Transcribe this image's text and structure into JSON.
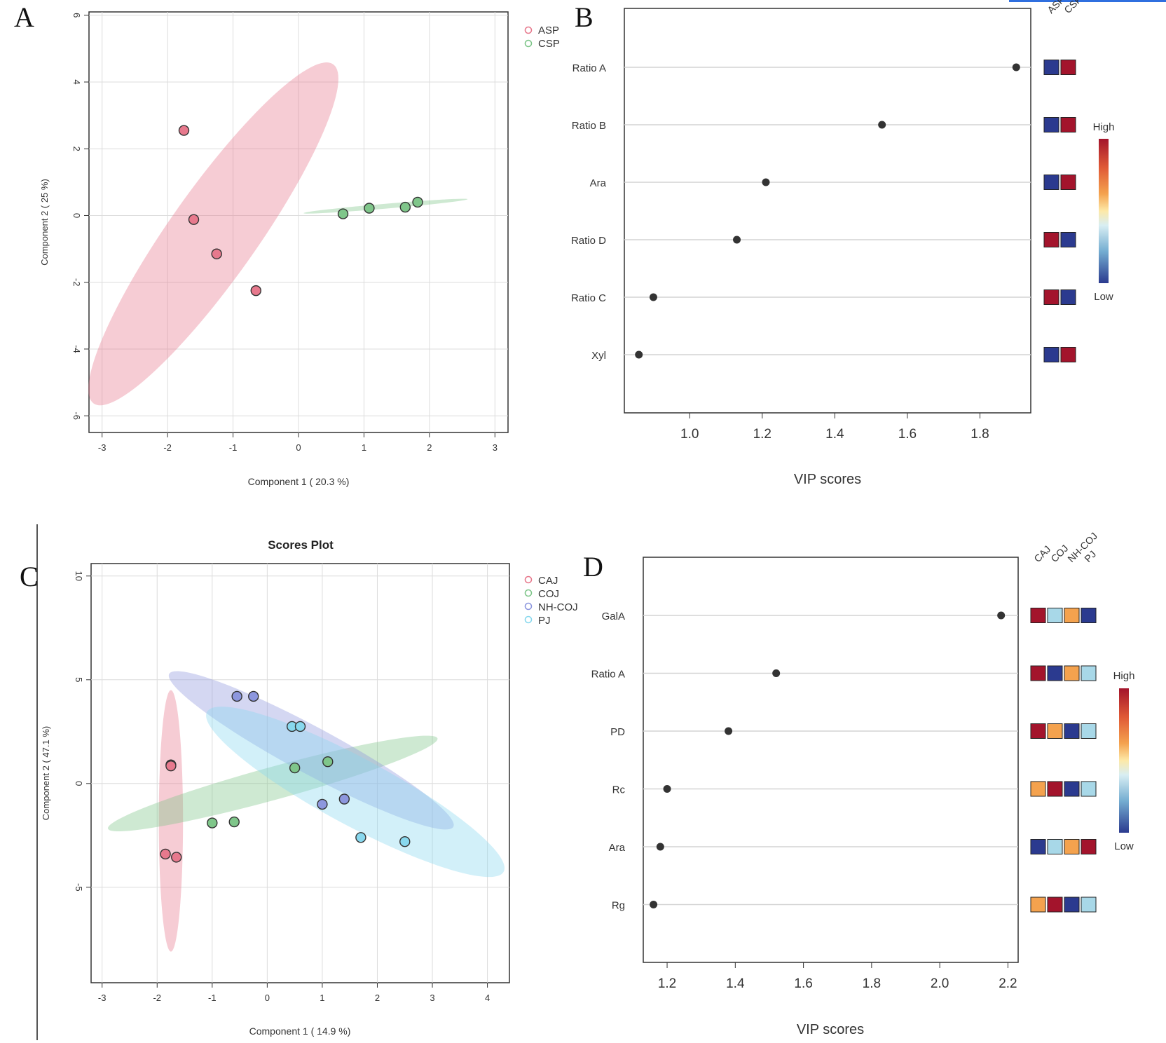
{
  "chart_data": [
    {
      "panel": "A",
      "type": "scatter",
      "title": "",
      "xlabel": "Component 1 ( 20.3 %)",
      "ylabel": "Component 2 ( 25 %)",
      "xlim": [
        -3.2,
        3.2
      ],
      "ylim": [
        -6.5,
        6.1
      ],
      "xticks": [
        -3,
        -2,
        -1,
        0,
        1,
        2,
        3
      ],
      "yticks": [
        -6,
        -4,
        -2,
        0,
        2,
        4,
        6
      ],
      "legend": [
        "ASP",
        "CSP"
      ],
      "series": [
        {
          "name": "ASP",
          "color": "#e7798d",
          "points": [
            [
              -1.75,
              2.55
            ],
            [
              -1.6,
              -0.12
            ],
            [
              -1.25,
              -1.15
            ],
            [
              -0.65,
              -2.25
            ]
          ],
          "ellipse": {
            "cx": -1.3,
            "cy": -0.55,
            "rx": 5.4,
            "ry": 0.7,
            "angle_deg": 70.2
          }
        },
        {
          "name": "CSP",
          "color": "#7fc68a",
          "points": [
            [
              0.68,
              0.05
            ],
            [
              1.08,
              0.22
            ],
            [
              1.63,
              0.25
            ],
            [
              1.82,
              0.4
            ]
          ],
          "ellipse": {
            "cx": 1.33,
            "cy": 0.28,
            "rx": 1.27,
            "ry": 0.07,
            "angle_deg": 9.5
          }
        }
      ]
    },
    {
      "panel": "B",
      "type": "dot",
      "xlabel": "VIP scores",
      "xlim": [
        0.82,
        1.94
      ],
      "xticks": [
        "1.0",
        "1.2",
        "1.4",
        "1.6",
        "1.8"
      ],
      "features": [
        "Ratio A",
        "Ratio B",
        "Ara",
        "Ratio D",
        "Ratio C",
        "Xyl"
      ],
      "values": [
        1.9,
        1.53,
        1.21,
        1.13,
        0.9,
        0.86
      ],
      "groups": [
        "ASP",
        "CSP"
      ],
      "heat_colors": [
        [
          "#2b3a8f",
          "#a3142c"
        ],
        [
          "#2b3a8f",
          "#a3142c"
        ],
        [
          "#2b3a8f",
          "#a3142c"
        ],
        [
          "#a3142c",
          "#2b3a8f"
        ],
        [
          "#a3142c",
          "#2b3a8f"
        ],
        [
          "#2b3a8f",
          "#a3142c"
        ]
      ],
      "colorbar": {
        "high": "High",
        "low": "Low"
      }
    },
    {
      "panel": "C",
      "type": "scatter",
      "title": "Scores Plot",
      "xlabel": "Component 1 ( 14.9 %)",
      "ylabel": "Component 2 ( 47.1 %)",
      "xlim": [
        -3.2,
        4.4
      ],
      "ylim": [
        -9.6,
        10.6
      ],
      "xticks": [
        -3,
        -2,
        -1,
        0,
        1,
        2,
        3,
        4
      ],
      "yticks": [
        -5,
        0,
        5,
        10
      ],
      "legend": [
        "CAJ",
        "COJ",
        "NH-COJ",
        "PJ"
      ],
      "series": [
        {
          "name": "CAJ",
          "color": "#e7798d",
          "points": [
            [
              -1.75,
              0.9
            ],
            [
              -1.75,
              0.85
            ],
            [
              -1.85,
              -3.4
            ],
            [
              -1.65,
              -3.55
            ]
          ],
          "ellipse": {
            "cx": -1.75,
            "cy": -1.8,
            "rx": 0.22,
            "ry": 6.3,
            "angle_deg": 0
          }
        },
        {
          "name": "COJ",
          "color": "#7fc68a",
          "points": [
            [
              -1.0,
              -1.9
            ],
            [
              -0.6,
              -1.85
            ],
            [
              0.5,
              0.75
            ],
            [
              1.1,
              1.05
            ]
          ],
          "ellipse": {
            "cx": 0.1,
            "cy": 0.0,
            "rx": 3.7,
            "ry": 0.45,
            "angle_deg": 36
          }
        },
        {
          "name": "NH-COJ",
          "color": "#8d97de",
          "points": [
            [
              -0.55,
              4.2
            ],
            [
              -0.25,
              4.2
            ],
            [
              1.0,
              -1.0
            ],
            [
              1.4,
              -0.75
            ]
          ],
          "ellipse": {
            "cx": 0.8,
            "cy": 1.6,
            "rx": 4.5,
            "ry": 0.5,
            "angle_deg": -55
          }
        },
        {
          "name": "PJ",
          "color": "#88d8ee",
          "points": [
            [
              0.45,
              2.75
            ],
            [
              0.6,
              2.75
            ],
            [
              1.7,
              -2.6
            ],
            [
              2.5,
              -2.8
            ]
          ],
          "ellipse": {
            "cx": 1.6,
            "cy": -0.4,
            "rx": 4.7,
            "ry": 0.72,
            "angle_deg": -55
          }
        }
      ]
    },
    {
      "panel": "D",
      "type": "dot",
      "xlabel": "VIP scores",
      "xlim": [
        1.13,
        2.23
      ],
      "xticks": [
        "1.2",
        "1.4",
        "1.6",
        "1.8",
        "2.0",
        "2.2"
      ],
      "features": [
        "GalA",
        "Ratio A",
        "PD",
        "Rc",
        "Ara",
        "Rg"
      ],
      "values": [
        2.18,
        1.52,
        1.38,
        1.2,
        1.18,
        1.16
      ],
      "groups": [
        "CAJ",
        "COJ",
        "NH-COJ",
        "PJ"
      ],
      "heat_colors": [
        [
          "#a3142c",
          "#a8d8e8",
          "#f4a24e",
          "#2b3a8f"
        ],
        [
          "#a3142c",
          "#2b3a8f",
          "#f4a24e",
          "#a8d8e8"
        ],
        [
          "#a3142c",
          "#f4a24e",
          "#2b3a8f",
          "#a8d8e8"
        ],
        [
          "#f4a24e",
          "#a3142c",
          "#2b3a8f",
          "#a8d8e8"
        ],
        [
          "#2b3a8f",
          "#a8d8e8",
          "#f4a24e",
          "#a3142c"
        ],
        [
          "#f4a24e",
          "#a3142c",
          "#2b3a8f",
          "#a8d8e8"
        ]
      ],
      "colorbar": {
        "high": "High",
        "low": "Low"
      }
    }
  ],
  "panel_labels": {
    "A": "A",
    "B": "B",
    "C": "C",
    "D": "D"
  },
  "gradient_colors": [
    "#a3142c",
    "#e05a36",
    "#f4a24e",
    "#fde9a8",
    "#d8eef3",
    "#74add1",
    "#3b57a7",
    "#2b3a8f"
  ]
}
